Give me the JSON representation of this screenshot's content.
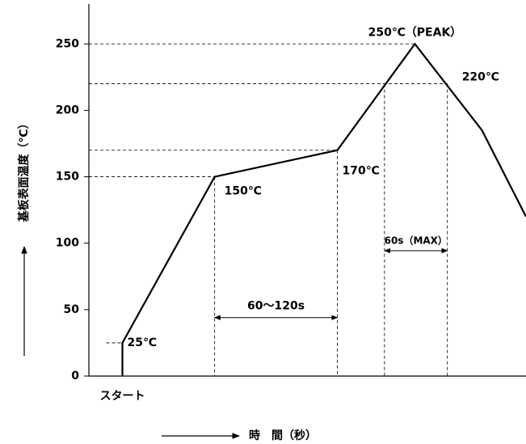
{
  "chart_data": {
    "type": "line",
    "ylabel": "基板表面温度（℃）",
    "xlabel": "時　間（秒）",
    "x": [
      0,
      0,
      88,
      205,
      279,
      343,
      385
    ],
    "series": [
      {
        "color": "#000000",
        "values": [
          0,
          25,
          150,
          170,
          250,
          185,
          120
        ]
      }
    ],
    "xlim": [
      -32,
      385
    ],
    "xticks": [
      {
        "value": 0,
        "label": "スタート"
      }
    ],
    "ylim": [
      0,
      280
    ],
    "yticks": [
      0,
      50,
      100,
      150,
      200,
      250
    ],
    "point_labels": [
      "25℃",
      "150℃",
      "170℃",
      "250℃（PEAK）"
    ],
    "spans": [
      {
        "label": "60～120s",
        "x": [
          88,
          205
        ],
        "y": 44
      },
      {
        "label": "60s（MAX）",
        "x": [
          250,
          310
        ],
        "y": 220,
        "level_label": "220℃"
      }
    ]
  }
}
